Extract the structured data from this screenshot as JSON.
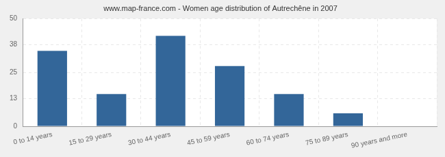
{
  "chart_data": {
    "type": "bar",
    "title": "www.map-france.com - Women age distribution of Autrechêne in 2007",
    "categories": [
      "0 to 14 years",
      "15 to 29 years",
      "30 to 44 years",
      "45 to 59 years",
      "60 to 74 years",
      "75 to 89 years",
      "90 years and more"
    ],
    "values": [
      35,
      15,
      42,
      28,
      15,
      6,
      0
    ],
    "color": "#336699",
    "ylim": [
      0,
      50
    ],
    "yticks": [
      0,
      13,
      25,
      38,
      50
    ],
    "grid": true
  }
}
